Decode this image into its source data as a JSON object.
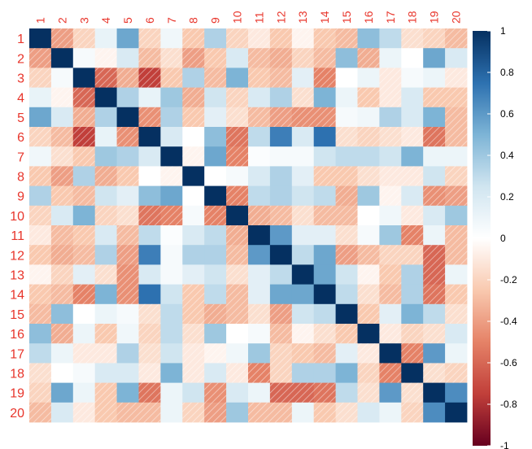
{
  "chart_data": {
    "type": "heatmap",
    "variables": [
      "1",
      "2",
      "3",
      "4",
      "5",
      "6",
      "7",
      "8",
      "9",
      "10",
      "11",
      "12",
      "13",
      "14",
      "15",
      "16",
      "17",
      "18",
      "19",
      "20"
    ],
    "matrix_note": "lower triangle holds estimated correlations; upper triangle mirrors it",
    "lower_rows": [
      [
        1
      ],
      [
        -0.4,
        1
      ],
      [
        -0.2,
        0.05,
        1
      ],
      [
        0.12,
        -0.05,
        -0.6,
        1
      ],
      [
        0.55,
        0.2,
        -0.35,
        0.35,
        1
      ],
      [
        -0.2,
        -0.3,
        -0.75,
        0.12,
        -0.45,
        1
      ],
      [
        0.08,
        -0.15,
        -0.25,
        0.4,
        0.35,
        0.2,
        1
      ],
      [
        -0.25,
        -0.4,
        0.35,
        -0.35,
        -0.25,
        0.0,
        -0.05,
        1
      ],
      [
        0.35,
        -0.25,
        -0.3,
        0.25,
        0.15,
        0.45,
        0.55,
        0.0,
        1
      ],
      [
        -0.2,
        0.2,
        0.5,
        -0.2,
        -0.15,
        -0.55,
        -0.5,
        0.05,
        -0.5,
        1
      ],
      [
        -0.1,
        -0.3,
        -0.25,
        0.2,
        -0.3,
        0.3,
        0.02,
        0.2,
        0.3,
        -0.35,
        1
      ],
      [
        -0.25,
        -0.35,
        -0.3,
        0.35,
        -0.4,
        0.7,
        0.05,
        0.35,
        0.35,
        -0.3,
        0.6,
        1
      ],
      [
        -0.05,
        -0.2,
        0.15,
        -0.15,
        -0.45,
        0.2,
        0.05,
        0.15,
        0.25,
        -0.15,
        0.15,
        0.3,
        1
      ],
      [
        -0.25,
        -0.3,
        -0.5,
        0.5,
        -0.45,
        0.75,
        0.25,
        -0.25,
        0.3,
        -0.3,
        0.15,
        0.55,
        0.55,
        1
      ],
      [
        -0.3,
        0.45,
        0.0,
        0.1,
        0.05,
        -0.15,
        0.3,
        -0.25,
        -0.35,
        -0.3,
        -0.15,
        -0.4,
        0.25,
        0.3,
        1
      ],
      [
        0.45,
        -0.35,
        0.1,
        -0.25,
        0.08,
        -0.2,
        0.3,
        -0.15,
        0.4,
        0.0,
        0.05,
        -0.3,
        -0.05,
        -0.15,
        -0.25,
        1
      ],
      [
        0.3,
        0.1,
        -0.1,
        -0.1,
        0.35,
        -0.15,
        0.25,
        -0.1,
        -0.05,
        0.08,
        0.4,
        -0.2,
        -0.25,
        -0.3,
        0.15,
        -0.1,
        1
      ],
      [
        -0.15,
        0.0,
        0.05,
        0.2,
        0.2,
        -0.1,
        0.5,
        -0.1,
        0.2,
        -0.1,
        -0.5,
        -0.2,
        0.35,
        0.35,
        0.5,
        -0.2,
        -0.5,
        1
      ],
      [
        -0.2,
        0.55,
        0.1,
        -0.25,
        0.5,
        -0.55,
        0.1,
        0.25,
        -0.45,
        0.2,
        0.1,
        -0.6,
        -0.6,
        -0.55,
        0.3,
        -0.15,
        0.6,
        -0.15,
        1
      ],
      [
        -0.3,
        0.2,
        -0.1,
        -0.25,
        -0.3,
        -0.3,
        0.1,
        -0.2,
        -0.4,
        0.4,
        -0.3,
        -0.3,
        0.1,
        -0.25,
        -0.15,
        0.2,
        0.1,
        -0.2,
        0.65,
        1
      ]
    ],
    "color_scale": {
      "low": "#67001F",
      "mid": "#FFFFFF",
      "high": "#053061",
      "stops": [
        [
          -1,
          "#67001F"
        ],
        [
          -0.75,
          "#C13F3A"
        ],
        [
          -0.5,
          "#E58267"
        ],
        [
          -0.25,
          "#F9C9AF"
        ],
        [
          0,
          "#FFFFFF"
        ],
        [
          0.25,
          "#D0E5F0"
        ],
        [
          0.5,
          "#7DB4D6"
        ],
        [
          0.75,
          "#2D71B0"
        ],
        [
          1,
          "#053061"
        ]
      ]
    },
    "legend": {
      "position": "right",
      "ticks": [
        "1",
        "0.8",
        "0.6",
        "0.4",
        "0.2",
        "0",
        "-0.2",
        "-0.4",
        "-0.6",
        "-0.8",
        "-1"
      ]
    },
    "label_color": "#E8352B",
    "negative_hatch": true
  }
}
